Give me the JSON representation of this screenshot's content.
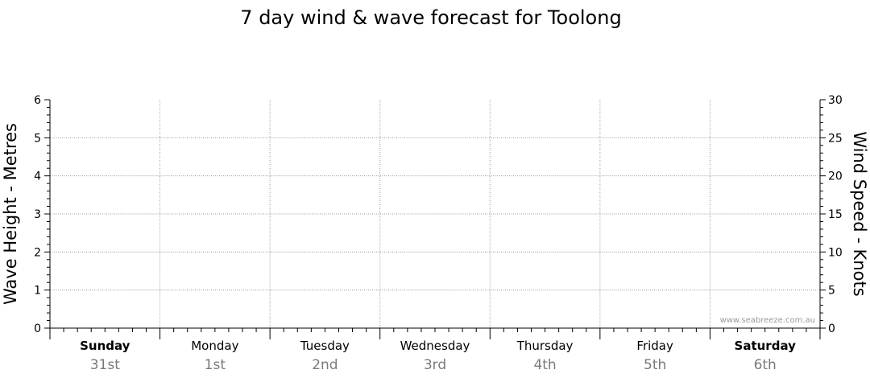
{
  "chart_data": {
    "type": "line",
    "title": "7 day wind & wave forecast for Toolong",
    "ylabel_left": "Wave Height - Metres",
    "ylabel_right": "Wind Speed - Knots",
    "ylim_left": [
      0,
      6
    ],
    "ylim_right": [
      0,
      30
    ],
    "yticks_left": [
      "0",
      "1",
      "2",
      "3",
      "4",
      "5",
      "6"
    ],
    "yticks_right": [
      "0",
      "5",
      "10",
      "15",
      "20",
      "25",
      "30"
    ],
    "grid": true,
    "days": [
      {
        "name": "Sunday",
        "date": "31st",
        "bold": true
      },
      {
        "name": "Monday",
        "date": "1st",
        "bold": false
      },
      {
        "name": "Tuesday",
        "date": "2nd",
        "bold": false
      },
      {
        "name": "Wednesday",
        "date": "3rd",
        "bold": false
      },
      {
        "name": "Thursday",
        "date": "4th",
        "bold": false
      },
      {
        "name": "Friday",
        "date": "5th",
        "bold": false
      },
      {
        "name": "Saturday",
        "date": "6th",
        "bold": true
      }
    ],
    "series": []
  },
  "watermark": "www.seabreeze.com.au"
}
